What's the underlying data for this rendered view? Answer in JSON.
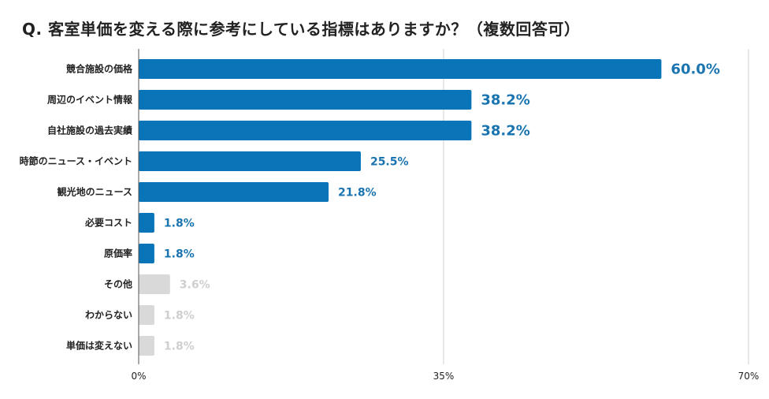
{
  "chart_data": {
    "type": "bar",
    "orientation": "horizontal",
    "title": "Q. 客室単価を変える際に参考にしている指標はありますか？（複数回答可）",
    "categories": [
      "競合施設の価格",
      "周辺のイベント情報",
      "自社施設の過去実績",
      "時節のニュース・イベント",
      "観光地のニュース",
      "必要コスト",
      "原価率",
      "その他",
      "わからない",
      "単価は変えない"
    ],
    "values": [
      60.0,
      38.2,
      38.2,
      25.5,
      21.8,
      1.8,
      1.8,
      3.6,
      1.8,
      1.8
    ],
    "value_labels": [
      "60.0%",
      "38.2%",
      "38.2%",
      "25.5%",
      "21.8%",
      "1.8%",
      "1.8%",
      "3.6%",
      "1.8%",
      "1.8%"
    ],
    "highlighted": [
      true,
      true,
      true,
      true,
      true,
      true,
      true,
      false,
      false,
      false
    ],
    "xlim": [
      0,
      70
    ],
    "x_ticks": [
      0,
      35,
      70
    ],
    "x_tick_labels": [
      "0%",
      "35%",
      "70%"
    ],
    "xlabel": "",
    "ylabel": "",
    "grid": true,
    "legend": "none"
  },
  "colors": {
    "bar": "#0a74b8",
    "bar_muted": "#d9d9d9",
    "label": "#1a74b0",
    "label_muted": "#cfcfcf",
    "grid": "#d0d0d0",
    "axis": "#555555"
  }
}
